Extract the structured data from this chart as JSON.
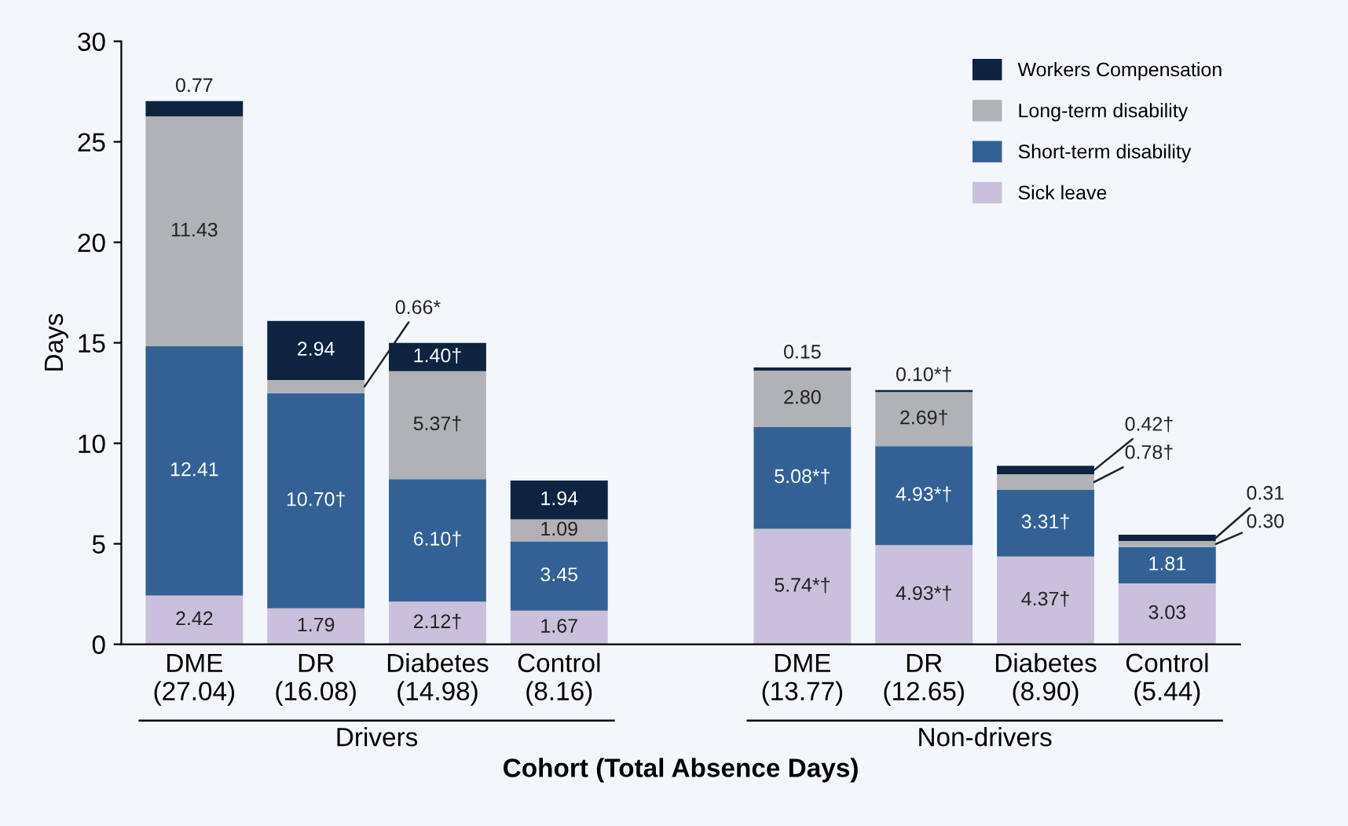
{
  "chart_data": {
    "type": "bar",
    "stacked": true,
    "xlabel": "Cohort (Total Absence Days)",
    "ylabel": "Days",
    "categories": [
      "DME\n(27.04)",
      "DR\n(16.08)",
      "Diabetes\n(14.98)",
      "Control\n(8.16)",
      null,
      "DME\n(13.77)",
      "DR\n(12.65)",
      "Diabetes\n(8.90)",
      "Control\n(5.44)"
    ],
    "series": [
      {
        "name": "Sick leave",
        "color": "#c9c0dc",
        "values": [
          2.42,
          1.79,
          2.12,
          1.67,
          null,
          5.74,
          4.93,
          4.37,
          3.03
        ],
        "value_labels": [
          "2.42",
          "1.79",
          "2.12†",
          "1.67",
          null,
          "5.74*†",
          "4.93*†",
          "4.37†",
          "3.03"
        ]
      },
      {
        "name": "Short-term disability",
        "color": "#336195",
        "values": [
          12.41,
          10.7,
          6.1,
          3.45,
          null,
          5.08,
          4.93,
          3.31,
          1.81
        ],
        "value_labels": [
          "12.41",
          "10.70†",
          "6.10†",
          "3.45",
          null,
          "5.08*†",
          "4.93*†",
          "3.31†",
          "1.81"
        ]
      },
      {
        "name": "Long-term disability",
        "color": "#b1b2b5",
        "values": [
          11.43,
          0.66,
          5.37,
          1.09,
          null,
          2.8,
          2.69,
          0.78,
          0.3
        ],
        "value_labels": [
          "11.43",
          "0.66*",
          "5.37†",
          "1.09",
          null,
          "2.80",
          "2.69†",
          "0.78†",
          "0.30"
        ]
      },
      {
        "name": "Workers Compensation",
        "color": "#0d2340",
        "values": [
          0.77,
          2.94,
          1.4,
          1.94,
          null,
          0.15,
          0.1,
          0.42,
          0.31
        ],
        "value_labels": [
          "0.77",
          "2.94",
          "1.40†",
          "1.94",
          null,
          "0.15",
          "0.10*†",
          "0.42†",
          "0.31"
        ]
      }
    ],
    "ylim": [
      0,
      30
    ],
    "yticks": [
      0,
      5,
      10,
      15,
      20,
      25,
      30
    ],
    "grid": false,
    "legend": "top right",
    "annotations": [
      "Drivers",
      "Non-drivers"
    ]
  }
}
